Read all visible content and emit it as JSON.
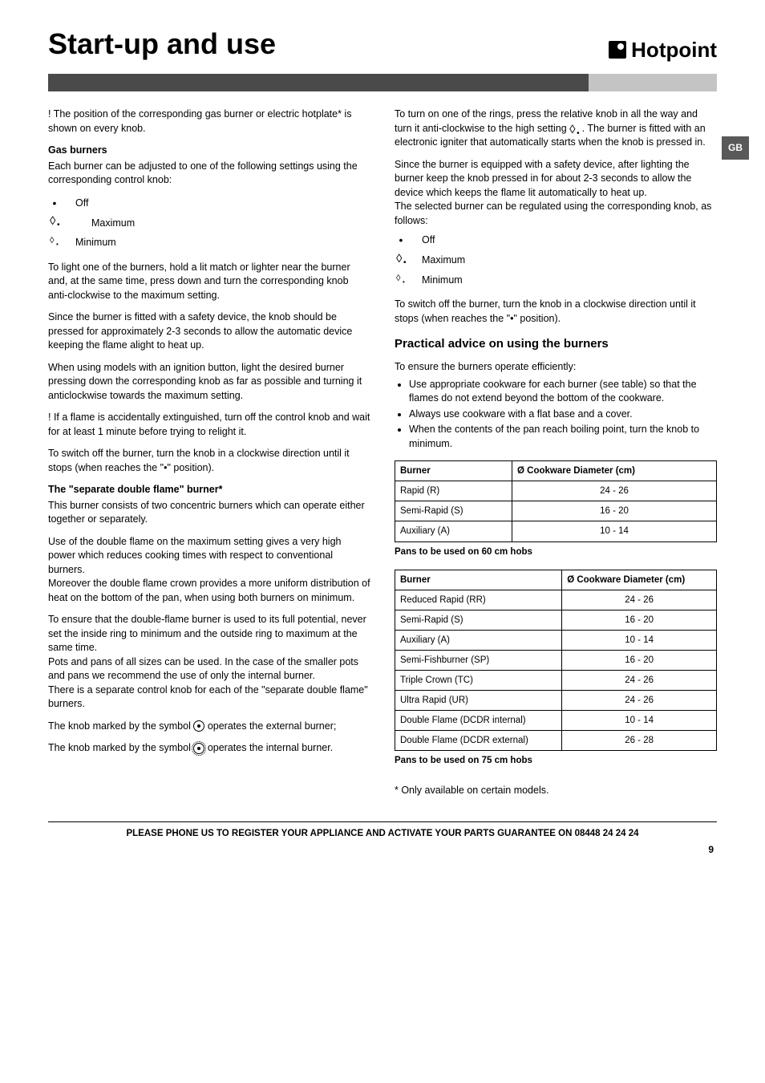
{
  "page_title": "Start-up and use",
  "brand": "Hotpoint",
  "language_tab": "GB",
  "left_column": {
    "intro": "! The position of the corresponding gas burner or electric hotplate* is shown on every knob.",
    "gas_burners_heading": "Gas burners",
    "gas_burners_intro": "Each burner can be adjusted to one of the following settings using the corresponding control knob:",
    "settings": [
      {
        "symbol": "•",
        "label": "Off"
      },
      {
        "symbol": "flame-large",
        "label": "Maximum"
      },
      {
        "symbol": "flame-small",
        "label": "Minimum"
      }
    ],
    "para_light": "To light one of the burners, hold a lit match or lighter near the burner and, at the same time, press down and turn the corresponding knob anti-clockwise to the maximum setting.",
    "para_safety": "Since the burner is fitted with a safety device, the knob should be pressed for approximately 2-3 seconds to allow the automatic device keeping the flame alight to heat up.",
    "para_ignition": "When using models with an ignition button, light the desired burner pressing down the corresponding knob as far as possible and turning it anticlockwise towards the maximum setting.",
    "para_extinguish": "! If a flame is accidentally extinguished, turn off the control knob and wait for at least 1 minute before trying to relight it.",
    "para_switchoff": "To switch off the burner, turn the knob in a clockwise direction until it stops (when reaches the \"•\" position).",
    "separate_heading": "The \"separate double flame\" burner*",
    "sep_p1": "This burner consists of two concentric burners which can operate either together or separately.",
    "sep_p2": "Use of the double flame on the maximum setting gives a very high power which reduces cooking times with respect to conventional burners.",
    "sep_p3": "Moreover the double flame crown provides a more uniform distribution of heat on the bottom of the pan, when using both burners on minimum.",
    "sep_bold": "To ensure that the double-flame burner is used to its full potential, never set the inside ring to minimum and the outside ring to maximum at the same time.",
    "sep_p4": "Pots and pans of all sizes can be used. In the case of the smaller pots and pans we recommend the use of only the internal burner.",
    "sep_p5": "There is a separate control knob for each of the \"separate double flame\" burners.",
    "sep_knob_ext_pre": "The knob marked by the symbol ",
    "sep_knob_ext_post": " operates the external burner;",
    "sep_knob_int_pre": "The knob marked by the symbol ",
    "sep_knob_int_post": " operates the internal burner."
  },
  "right_column": {
    "turn_on_pre": "To turn on one of the rings, press the relative knob in all the way and turn it anti-clockwise to the high setting ",
    "turn_on_post": ". The burner is fitted with an electronic igniter that automatically starts when the knob is pressed in.",
    "safety_pre": "Since the burner is equipped with a safety device,",
    "safety_post": " after lighting the burner keep the knob pressed in for about 2-3 seconds to allow the device which keeps the flame lit automatically to heat up.",
    "regulate": "The selected burner can be regulated using the corresponding knob, as follows:",
    "settings": [
      {
        "symbol": "•",
        "label": "Off"
      },
      {
        "symbol": "flame-large",
        "label": "Maximum"
      },
      {
        "symbol": "flame-small",
        "label": "Minimum"
      }
    ],
    "switchoff": "To switch off the burner, turn the knob in a clockwise direction until it stops (when reaches the \"•\" position).",
    "advice_heading": "Practical advice on using the burners",
    "advice_intro": "To ensure the burners operate efficiently:",
    "advice_items": [
      "Use appropriate cookware for each burner (see table) so that the flames do not extend beyond the bottom of the cookware.",
      "Always use cookware with a flat base and a cover.",
      "When the contents of the pan reach boiling point, turn the knob to minimum."
    ],
    "table1": {
      "headers": [
        "Burner",
        "Ø Cookware Diameter (cm)"
      ],
      "rows": [
        [
          "Rapid (R)",
          "24 - 26"
        ],
        [
          "Semi-Rapid (S)",
          "16 - 20"
        ],
        [
          "Auxiliary (A)",
          "10 - 14"
        ]
      ],
      "caption": "Pans to be used on 60 cm hobs"
    },
    "table2": {
      "headers": [
        "Burner",
        "Ø Cookware Diameter (cm)"
      ],
      "rows": [
        [
          "Reduced Rapid (RR)",
          "24 - 26"
        ],
        [
          "Semi-Rapid (S)",
          "16 - 20"
        ],
        [
          "Auxiliary (A)",
          "10 - 14"
        ],
        [
          "Semi-Fishburner (SP)",
          "16 - 20"
        ],
        [
          "Triple Crown (TC)",
          "24 - 26"
        ],
        [
          "Ultra Rapid (UR)",
          "24 - 26"
        ],
        [
          "Double Flame (DCDR internal)",
          "10 - 14"
        ],
        [
          "Double Flame (DCDR external)",
          "26 - 28"
        ]
      ],
      "caption": "Pans to be used on 75 cm hobs"
    },
    "footnote": "* Only available on certain models."
  },
  "footer": "PLEASE PHONE US TO REGISTER YOUR APPLIANCE AND ACTIVATE YOUR PARTS GUARANTEE ON 08448 24 24 24",
  "page_number": "9"
}
